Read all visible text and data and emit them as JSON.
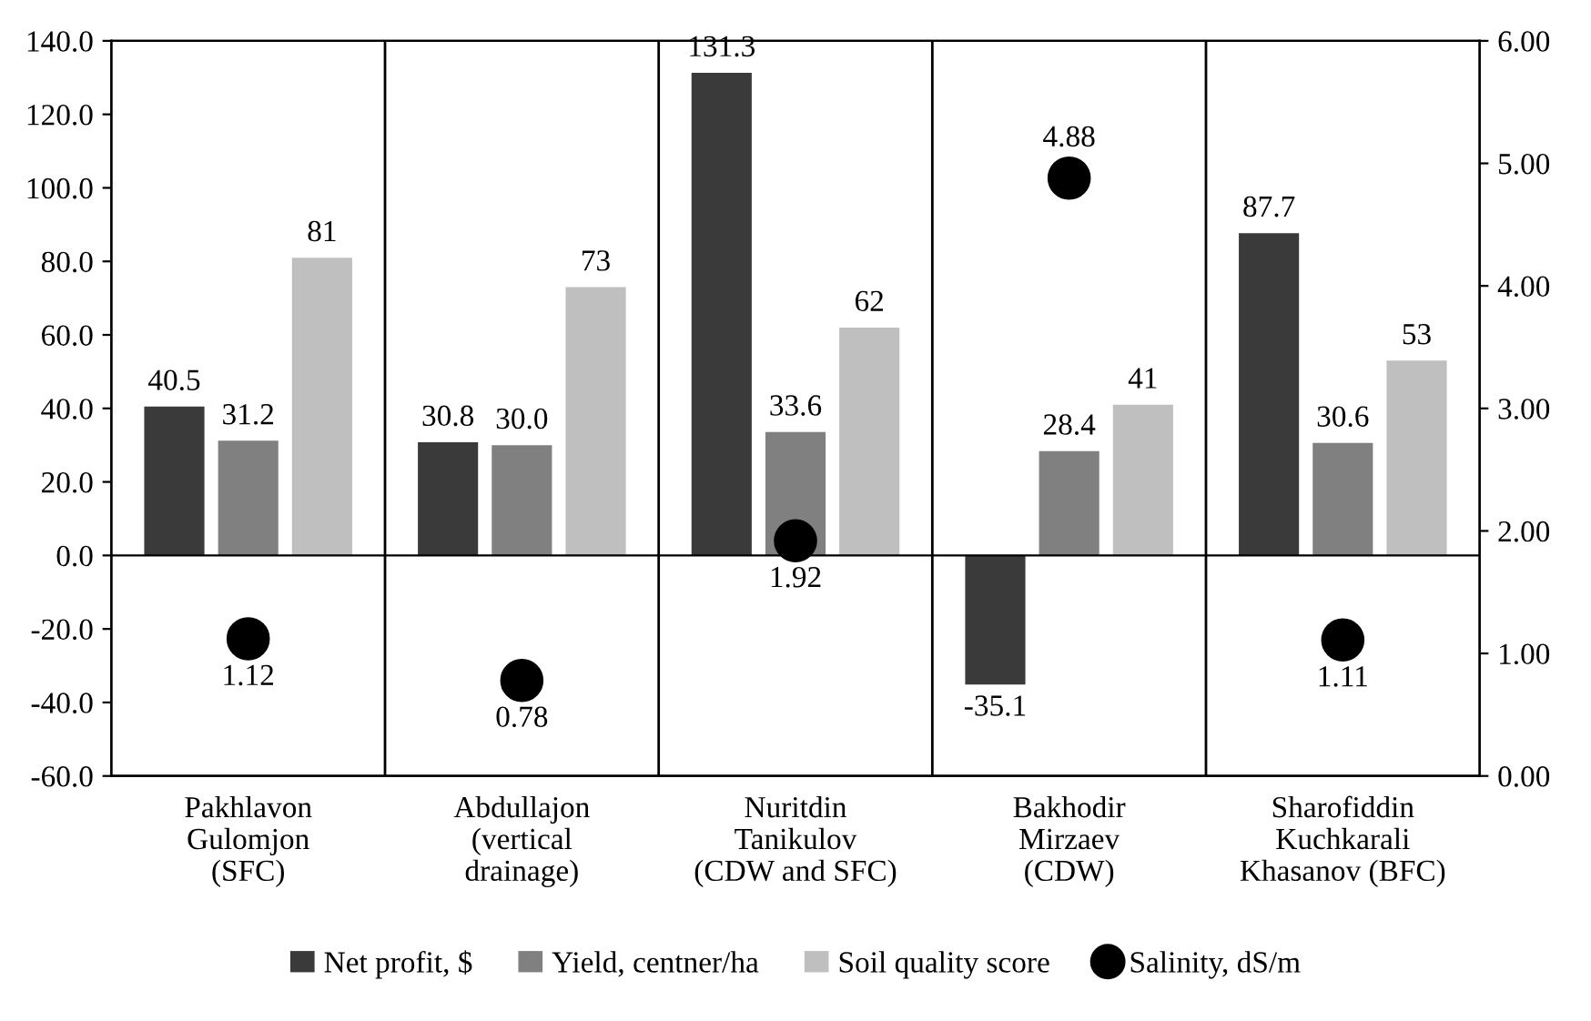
{
  "chart_data": {
    "type": "bar",
    "categories": [
      "Pakhlavon\nGulomjon\n(SFC)",
      "Abdullajon\n(vertical\ndrainage)",
      "Nuritdin\nTanikulov\n(CDW and SFC)",
      "Bakhodir\nMirzaev\n(CDW)",
      "Sharofiddin\nKuchkarali\nKhasanov (BFC)"
    ],
    "series": [
      {
        "name": "Net profit, $",
        "color": "#3a3a3a",
        "values": [
          40.5,
          30.8,
          131.3,
          -35.1,
          87.7
        ],
        "value_labels": [
          "40.5",
          "30.8",
          "131.3",
          "-35.1",
          "87.7"
        ]
      },
      {
        "name": "Yield, centner/ha",
        "color": "#808080",
        "values": [
          31.2,
          30.0,
          33.6,
          28.4,
          30.6
        ],
        "value_labels": [
          "31.2",
          "30.0",
          "33.6",
          "28.4",
          "30.6"
        ]
      },
      {
        "name": "Soil quality score",
        "color": "#bfbfbf",
        "values": [
          81,
          73,
          62,
          41,
          53
        ],
        "value_labels": [
          "81",
          "73",
          "62",
          "41",
          "53"
        ]
      },
      {
        "name": "Salinity, dS/m",
        "type": "scatter",
        "axis": "y2",
        "marker": "circle",
        "color": "#000000",
        "values": [
          1.12,
          0.78,
          1.92,
          4.88,
          1.11
        ],
        "value_labels": [
          "1.12",
          "0.78",
          "1.92",
          "4.88",
          "1.11"
        ]
      }
    ],
    "ylim": [
      -60,
      140
    ],
    "yticks": [
      {
        "value": -60,
        "label": "-60.0"
      },
      {
        "value": -40,
        "label": "-40.0"
      },
      {
        "value": -20,
        "label": "-20.0"
      },
      {
        "value": 0,
        "label": "0.0"
      },
      {
        "value": 20,
        "label": "20.0"
      },
      {
        "value": 40,
        "label": "40.0"
      },
      {
        "value": 60,
        "label": "60.0"
      },
      {
        "value": 80,
        "label": "80.0"
      },
      {
        "value": 100,
        "label": "100.0"
      },
      {
        "value": 120,
        "label": "120.0"
      },
      {
        "value": 140,
        "label": "140.0"
      }
    ],
    "y2lim": [
      0,
      6
    ],
    "y2ticks": [
      {
        "value": 0,
        "label": "0.00"
      },
      {
        "value": 1,
        "label": "1.00"
      },
      {
        "value": 2,
        "label": "2.00"
      },
      {
        "value": 3,
        "label": "3.00"
      },
      {
        "value": 4,
        "label": "4.00"
      },
      {
        "value": 5,
        "label": "5.00"
      },
      {
        "value": 6,
        "label": "6.00"
      }
    ],
    "grid": "x",
    "legend": "bottom"
  }
}
